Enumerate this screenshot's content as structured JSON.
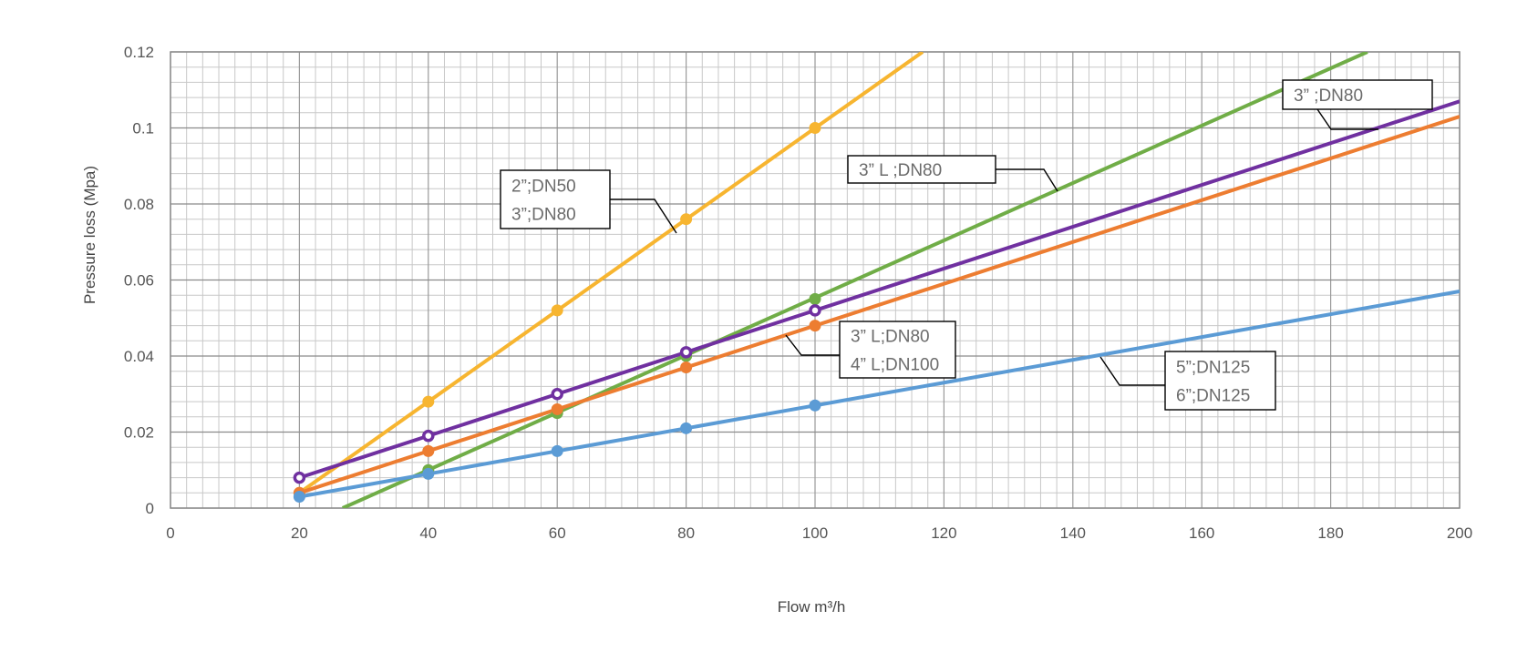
{
  "chart_data": {
    "type": "line",
    "title": "",
    "xlabel": "Flow m³/h",
    "ylabel": "Pressure loss (Mpa)",
    "xlim": [
      0,
      200
    ],
    "ylim": [
      0,
      0.12
    ],
    "x_ticks": [
      "0",
      "20",
      "40",
      "60",
      "80",
      "100",
      "120",
      "140",
      "160",
      "180",
      "200"
    ],
    "y_ticks": [
      "0",
      "0.02",
      "0.04",
      "0.06",
      "0.08",
      "0.1",
      "0.12"
    ],
    "grid": true,
    "legend": "none",
    "series": [
      {
        "color": "#F7B530",
        "points": [
          [
            20,
            0.004
          ],
          [
            40,
            0.028
          ],
          [
            60,
            0.052
          ],
          [
            80,
            0.076
          ],
          [
            100,
            0.1
          ]
        ],
        "line": [
          [
            20,
            0.004
          ],
          [
            116.7,
            0.12
          ]
        ],
        "marker": "filled",
        "label_lines": [
          "2”;DN50",
          "3”;DN80"
        ]
      },
      {
        "color": "#70AD47",
        "points": [
          [
            40,
            0.01
          ],
          [
            60,
            0.025
          ],
          [
            80,
            0.04
          ],
          [
            100,
            0.055
          ]
        ],
        "line": [
          [
            26.7,
            0.0
          ],
          [
            185.7,
            0.12
          ]
        ],
        "marker": "filled",
        "label_lines": [
          "3”  L       ;DN80"
        ]
      },
      {
        "color": "#7030A0",
        "points": [
          [
            20,
            0.008
          ],
          [
            40,
            0.019
          ],
          [
            60,
            0.03
          ],
          [
            80,
            0.041
          ],
          [
            100,
            0.052
          ]
        ],
        "line": [
          [
            20,
            0.008
          ],
          [
            200,
            0.107
          ]
        ],
        "marker": "open",
        "label_lines": [
          "3”          ;DN80"
        ]
      },
      {
        "color": "#ED7D31",
        "points": [
          [
            20,
            0.004
          ],
          [
            40,
            0.015
          ],
          [
            60,
            0.026
          ],
          [
            80,
            0.037
          ],
          [
            100,
            0.048
          ]
        ],
        "line": [
          [
            20,
            0.004
          ],
          [
            200,
            0.103
          ]
        ],
        "marker": "filled",
        "label_lines": [
          "3”  L;DN80",
          "4”  L;DN100"
        ]
      },
      {
        "color": "#5B9BD5",
        "points": [
          [
            20,
            0.003
          ],
          [
            40,
            0.009
          ],
          [
            60,
            0.015
          ],
          [
            80,
            0.021
          ],
          [
            100,
            0.027
          ]
        ],
        "line": [
          [
            20,
            0.003
          ],
          [
            200,
            0.057
          ]
        ],
        "marker": "filled",
        "label_lines": [
          "5”;DN125",
          "6”;DN125"
        ]
      }
    ]
  }
}
